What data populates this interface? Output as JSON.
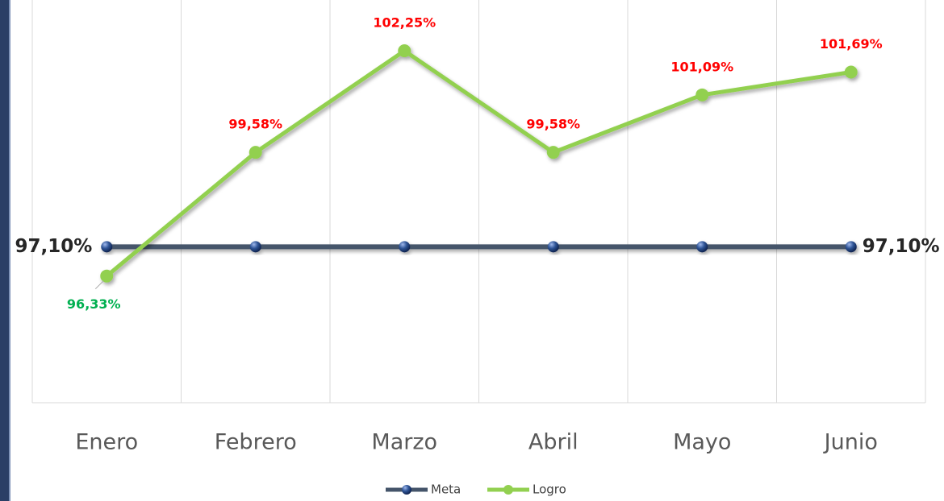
{
  "chart_data": {
    "type": "line",
    "categories": [
      "Enero",
      "Febrero",
      "Marzo",
      "Abril",
      "Mayo",
      "Junio"
    ],
    "series": [
      {
        "name": "Meta",
        "color": "#44546a",
        "marker_color": "#2f5597",
        "values": [
          97.1,
          97.1,
          97.1,
          97.1,
          97.1,
          97.1
        ],
        "value_labels": [
          "97,10%",
          null,
          null,
          null,
          null,
          "97,10%"
        ],
        "value_label_colors": [
          "#262626",
          null,
          null,
          null,
          null,
          "#262626"
        ]
      },
      {
        "name": "Logro",
        "color": "#92d050",
        "marker_color": "#92d050",
        "values": [
          96.33,
          99.58,
          102.25,
          99.58,
          101.09,
          101.69
        ],
        "value_labels": [
          "96,33%",
          "99,58%",
          "102,25%",
          "99,58%",
          "101,09%",
          "101,69%"
        ],
        "value_label_colors": [
          "#00b050",
          "#ff0000",
          "#ff0000",
          "#ff0000",
          "#ff0000",
          "#ff0000"
        ]
      }
    ],
    "ylim": [
      93,
      103.5
    ],
    "grid": true,
    "legend": "bottom"
  }
}
